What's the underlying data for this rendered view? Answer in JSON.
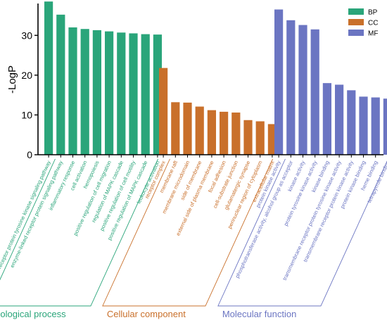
{
  "chart_data": {
    "type": "bar",
    "ylabel": "-LogP",
    "ylim": [
      0,
      38
    ],
    "yticks": [
      0,
      10,
      20,
      30
    ],
    "grid": false,
    "legend_position": "top-right",
    "legend": [
      {
        "name": "BP",
        "color": "#2aa57a"
      },
      {
        "name": "CC",
        "color": "#c9702b"
      },
      {
        "name": "MF",
        "color": "#6b75c2"
      }
    ],
    "groups": [
      {
        "name": "Biological process",
        "legend": "BP",
        "color": "#2aa57a",
        "bar_color": "#2aa57a",
        "categories": [
          "cell surface receptor protein tyrosine kinase signaling pathway",
          "enzyme-linked receptor protein signaling pathway",
          "inflammatory response",
          "cell activation",
          "hemopoiesis",
          "positive regulation of cell migration",
          "regulation of MAPK cascade",
          "positive regulation of cell motility",
          "positive regulation of MAPK cascade",
          "leukocyte activation"
        ],
        "values": [
          38.5,
          35.2,
          32.0,
          31.6,
          31.3,
          31.0,
          30.7,
          30.5,
          30.3,
          30.2
        ]
      },
      {
        "name": "Cellular component",
        "legend": "CC",
        "color": "#c9702b",
        "bar_color": "#c9702b",
        "categories": [
          "receptor complex",
          "membrane raft",
          "membrane microdomain",
          "side of membrane",
          "external side of plasma membrane",
          "focal adhesion",
          "cell-substrate junction",
          "glutamatergic synapse",
          "perinuclear region of cytoplasm",
          "extracellular matrix"
        ],
        "values": [
          21.8,
          13.2,
          13.1,
          12.1,
          11.2,
          10.8,
          10.6,
          8.7,
          8.4,
          7.7
        ]
      },
      {
        "name": "Molecular function",
        "legend": "MF",
        "color": "#6b75c2",
        "bar_color": "#6b75c2",
        "categories": [
          "protein kinase activity",
          "phosphotransferase activity, alcohol group as acceptor",
          "kinase activity",
          "protein tyrosine kinase activity",
          "kinase binding",
          "transmembrane receptor protein tyrosine kinase activity",
          "transmembrane receptor protein kinase activity",
          "protein kinase binding",
          "heme binding",
          "tetrapyrrole binding"
        ],
        "values": [
          36.5,
          33.8,
          32.6,
          31.5,
          18.0,
          17.6,
          16.2,
          14.6,
          14.4,
          14.1
        ]
      }
    ]
  }
}
